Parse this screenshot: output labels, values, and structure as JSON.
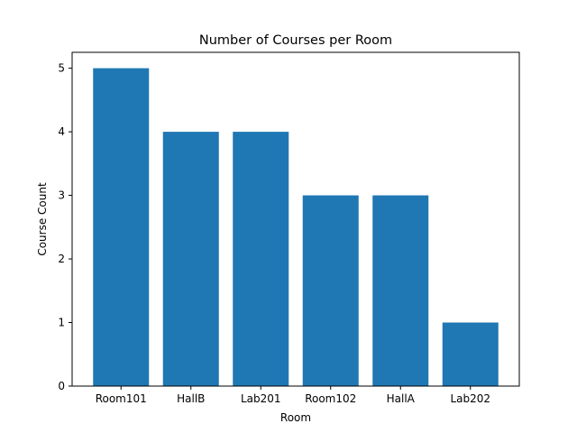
{
  "chart_data": {
    "type": "bar",
    "title": "Number of Courses per Room",
    "xlabel": "Room",
    "ylabel": "Course Count",
    "categories": [
      "Room101",
      "HallB",
      "Lab201",
      "Room102",
      "HallA",
      "Lab202"
    ],
    "values": [
      5,
      4,
      4,
      3,
      3,
      1
    ],
    "yticks": [
      0,
      1,
      2,
      3,
      4,
      5
    ],
    "ylim": [
      0,
      5.25
    ],
    "bar_color": "#1f77b4",
    "grid": false,
    "legend": "none"
  }
}
